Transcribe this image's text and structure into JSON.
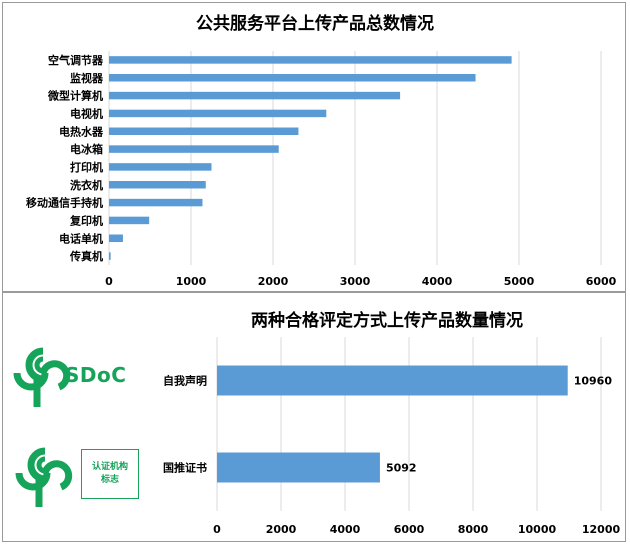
{
  "colors": {
    "bar": "#5b9bd5",
    "grid": "#d9d9d9",
    "text": "#000000",
    "brand_green": "#16a35a"
  },
  "chart_data": [
    {
      "type": "bar",
      "orientation": "horizontal",
      "title": "公共服务平台上传产品总数情况",
      "categories": [
        "空气调节器",
        "监视器",
        "微型计算机",
        "电视机",
        "电热水器",
        "电冰箱",
        "打印机",
        "洗衣机",
        "移动通信手持机",
        "复印机",
        "电话单机",
        "传真机"
      ],
      "values": [
        4910,
        4470,
        3550,
        2650,
        2310,
        2070,
        1250,
        1180,
        1140,
        490,
        170,
        20
      ],
      "xlim": [
        0,
        6000
      ],
      "xticks": [
        0,
        1000,
        2000,
        3000,
        4000,
        5000,
        6000
      ],
      "grid": true
    },
    {
      "type": "bar",
      "orientation": "horizontal",
      "title": "两种合格评定方式上传产品数量情况",
      "categories": [
        "自我声明",
        "国推证书"
      ],
      "values": [
        10960,
        5092
      ],
      "data_labels": [
        "10960",
        "5092"
      ],
      "xlim": [
        0,
        12000
      ],
      "xticks": [
        0,
        2000,
        4000,
        6000,
        8000,
        10000,
        12000
      ],
      "grid": true
    }
  ],
  "logos": {
    "sdoc_text": "SDoC",
    "cert_box_line1": "认证机构",
    "cert_box_line2": "标志"
  }
}
